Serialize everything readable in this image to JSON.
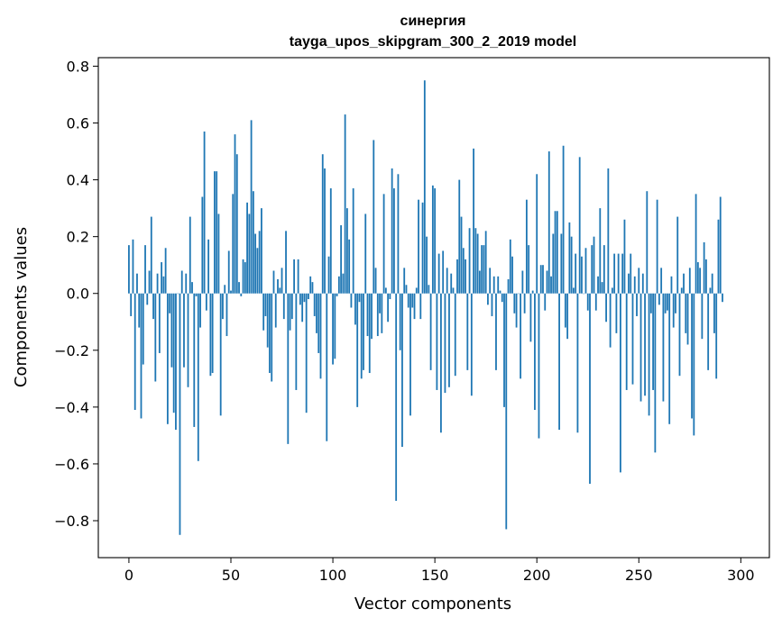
{
  "chart_data": {
    "type": "bar",
    "title_line1": "синергия",
    "title_line2": "tayga_upos_skipgram_300_2_2019 model",
    "xlabel": "Vector components",
    "ylabel": "Components values",
    "xlim": [
      -15,
      314
    ],
    "ylim": [
      -0.93,
      0.83
    ],
    "xticks": [
      "0",
      "50",
      "100",
      "150",
      "200",
      "250",
      "300"
    ],
    "yticks": [
      "−0.8",
      "−0.6",
      "−0.4",
      "−0.2",
      "0.0",
      "0.2",
      "0.4",
      "0.6",
      "0.8"
    ],
    "bar_color": "#1f77b4",
    "values": [
      0.17,
      -0.08,
      0.19,
      -0.41,
      0.07,
      -0.12,
      -0.44,
      -0.25,
      0.17,
      -0.04,
      0.08,
      0.27,
      -0.09,
      -0.31,
      0.07,
      -0.21,
      0.11,
      0.06,
      0.16,
      -0.46,
      -0.07,
      -0.26,
      -0.42,
      -0.48,
      0.0,
      -0.85,
      0.08,
      -0.26,
      0.07,
      -0.33,
      0.27,
      0.04,
      -0.47,
      -0.01,
      -0.59,
      -0.12,
      0.34,
      0.57,
      -0.06,
      0.19,
      -0.29,
      -0.28,
      0.43,
      0.43,
      0.28,
      -0.43,
      -0.09,
      0.03,
      -0.15,
      0.15,
      0.01,
      0.35,
      0.56,
      0.49,
      0.04,
      -0.01,
      0.12,
      0.11,
      0.32,
      0.28,
      0.61,
      0.36,
      0.21,
      0.16,
      0.22,
      0.3,
      -0.13,
      -0.08,
      -0.19,
      -0.28,
      -0.31,
      0.08,
      -0.12,
      0.05,
      0.02,
      0.09,
      -0.09,
      0.22,
      -0.53,
      -0.13,
      -0.09,
      0.12,
      -0.34,
      0.12,
      -0.04,
      -0.1,
      -0.03,
      -0.42,
      -0.02,
      0.06,
      0.04,
      -0.08,
      -0.14,
      -0.21,
      -0.3,
      0.49,
      0.44,
      -0.52,
      0.13,
      0.37,
      -0.25,
      -0.23,
      -0.01,
      0.06,
      0.24,
      0.07,
      0.63,
      0.3,
      0.19,
      -0.05,
      0.37,
      -0.11,
      -0.4,
      -0.03,
      -0.3,
      -0.27,
      0.28,
      -0.15,
      -0.28,
      -0.16,
      0.54,
      0.09,
      -0.15,
      -0.07,
      -0.14,
      0.35,
      0.02,
      -0.1,
      -0.02,
      0.44,
      0.37,
      -0.73,
      0.42,
      -0.2,
      -0.54,
      0.09,
      0.03,
      -0.05,
      -0.43,
      -0.05,
      -0.09,
      0.02,
      0.33,
      -0.09,
      0.32,
      0.75,
      0.2,
      0.03,
      -0.27,
      0.38,
      0.37,
      -0.34,
      0.14,
      -0.49,
      0.15,
      -0.35,
      0.09,
      -0.33,
      0.07,
      0.02,
      -0.29,
      0.12,
      0.4,
      0.27,
      0.16,
      0.12,
      -0.27,
      0.23,
      -0.36,
      0.51,
      0.23,
      0.21,
      0.08,
      0.17,
      0.17,
      0.22,
      -0.04,
      0.09,
      -0.08,
      0.06,
      -0.27,
      0.06,
      0.01,
      -0.03,
      -0.4,
      -0.83,
      0.05,
      0.19,
      0.13,
      -0.07,
      -0.12,
      0.0,
      -0.3,
      0.08,
      -0.07,
      0.33,
      0.17,
      -0.17,
      0.01,
      -0.41,
      0.42,
      -0.51,
      0.1,
      0.1,
      -0.06,
      0.08,
      0.5,
      0.06,
      0.21,
      0.29,
      0.29,
      -0.48,
      0.21,
      0.52,
      -0.12,
      -0.16,
      0.25,
      0.2,
      0.02,
      0.14,
      -0.49,
      0.48,
      0.13,
      0.0,
      0.16,
      -0.06,
      -0.67,
      0.17,
      0.2,
      -0.06,
      0.06,
      0.3,
      0.04,
      0.17,
      -0.1,
      0.44,
      -0.19,
      0.02,
      0.14,
      -0.14,
      0.14,
      -0.63,
      0.14,
      0.26,
      -0.34,
      0.07,
      0.14,
      -0.32,
      0.06,
      -0.08,
      0.09,
      -0.38,
      0.07,
      -0.36,
      0.36,
      -0.43,
      -0.07,
      -0.34,
      -0.56,
      0.33,
      -0.04,
      0.09,
      -0.38,
      -0.07,
      -0.06,
      -0.46,
      0.06,
      -0.12,
      -0.07,
      0.27,
      -0.29,
      0.02,
      0.07,
      -0.14,
      -0.18,
      0.09,
      -0.44,
      -0.5,
      0.35,
      0.11,
      0.09,
      -0.16,
      0.18,
      0.12,
      -0.27,
      0.02,
      0.07,
      -0.14,
      -0.3,
      0.26,
      0.34,
      -0.03
    ]
  }
}
